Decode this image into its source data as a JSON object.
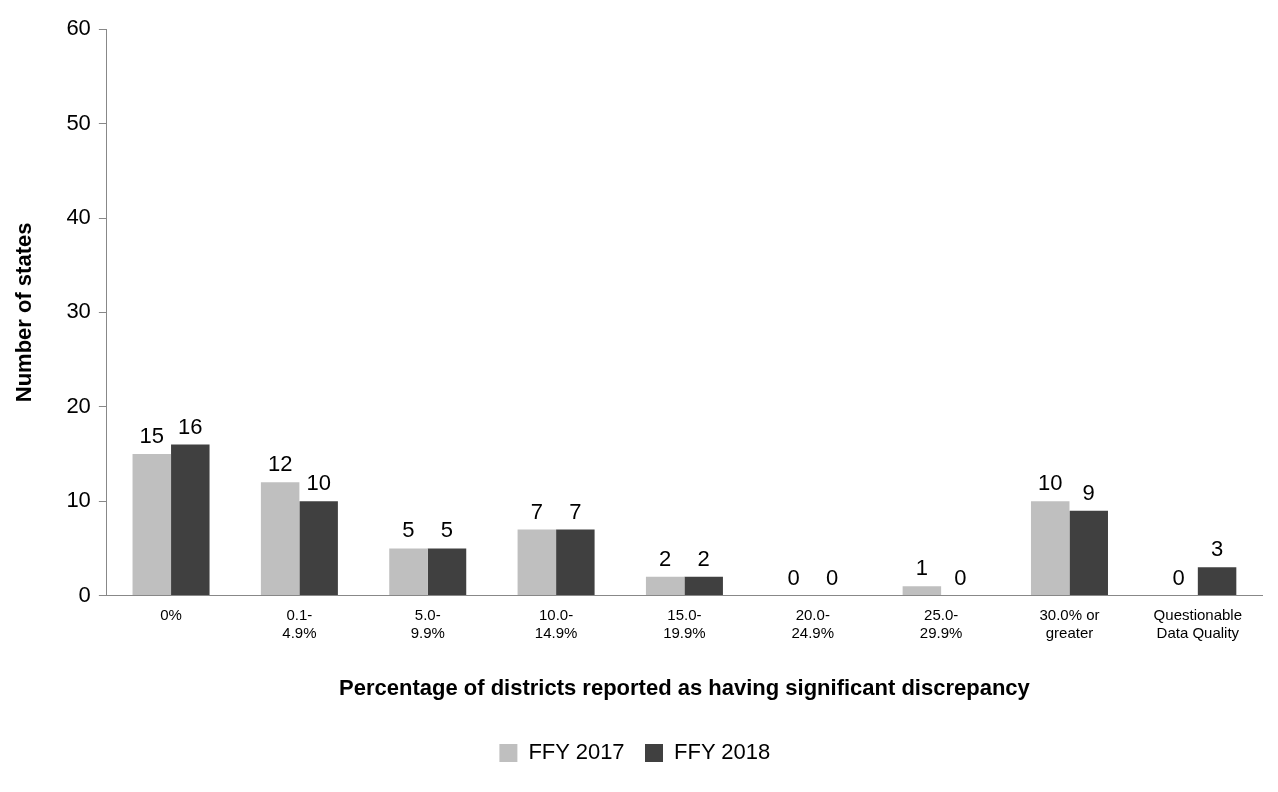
{
  "chart_data": {
    "type": "bar",
    "xlabel": "Percentage of districts reported as having significant discrepancy",
    "ylabel": "Number of states",
    "categories": [
      "0%",
      "0.1-\n4.9%",
      "5.0-\n9.9%",
      "10.0-\n14.9%",
      "15.0-\n19.9%",
      "20.0-\n24.9%",
      "25.0-\n29.9%",
      "30.0% or\ngreater",
      "Questionable\nData Quality"
    ],
    "series": [
      {
        "name": "FFY 2017",
        "color": "#bfbfbf",
        "values": [
          15,
          12,
          5,
          7,
          2,
          0,
          1,
          10,
          0
        ]
      },
      {
        "name": "FFY 2018",
        "color": "#404040",
        "values": [
          16,
          10,
          5,
          7,
          2,
          0,
          0,
          9,
          3
        ]
      }
    ],
    "ylim": [
      0,
      60
    ],
    "yticks": [
      0,
      10,
      20,
      30,
      40,
      50,
      60
    ],
    "grid": false,
    "legend": "bottom",
    "data_labels": true
  }
}
